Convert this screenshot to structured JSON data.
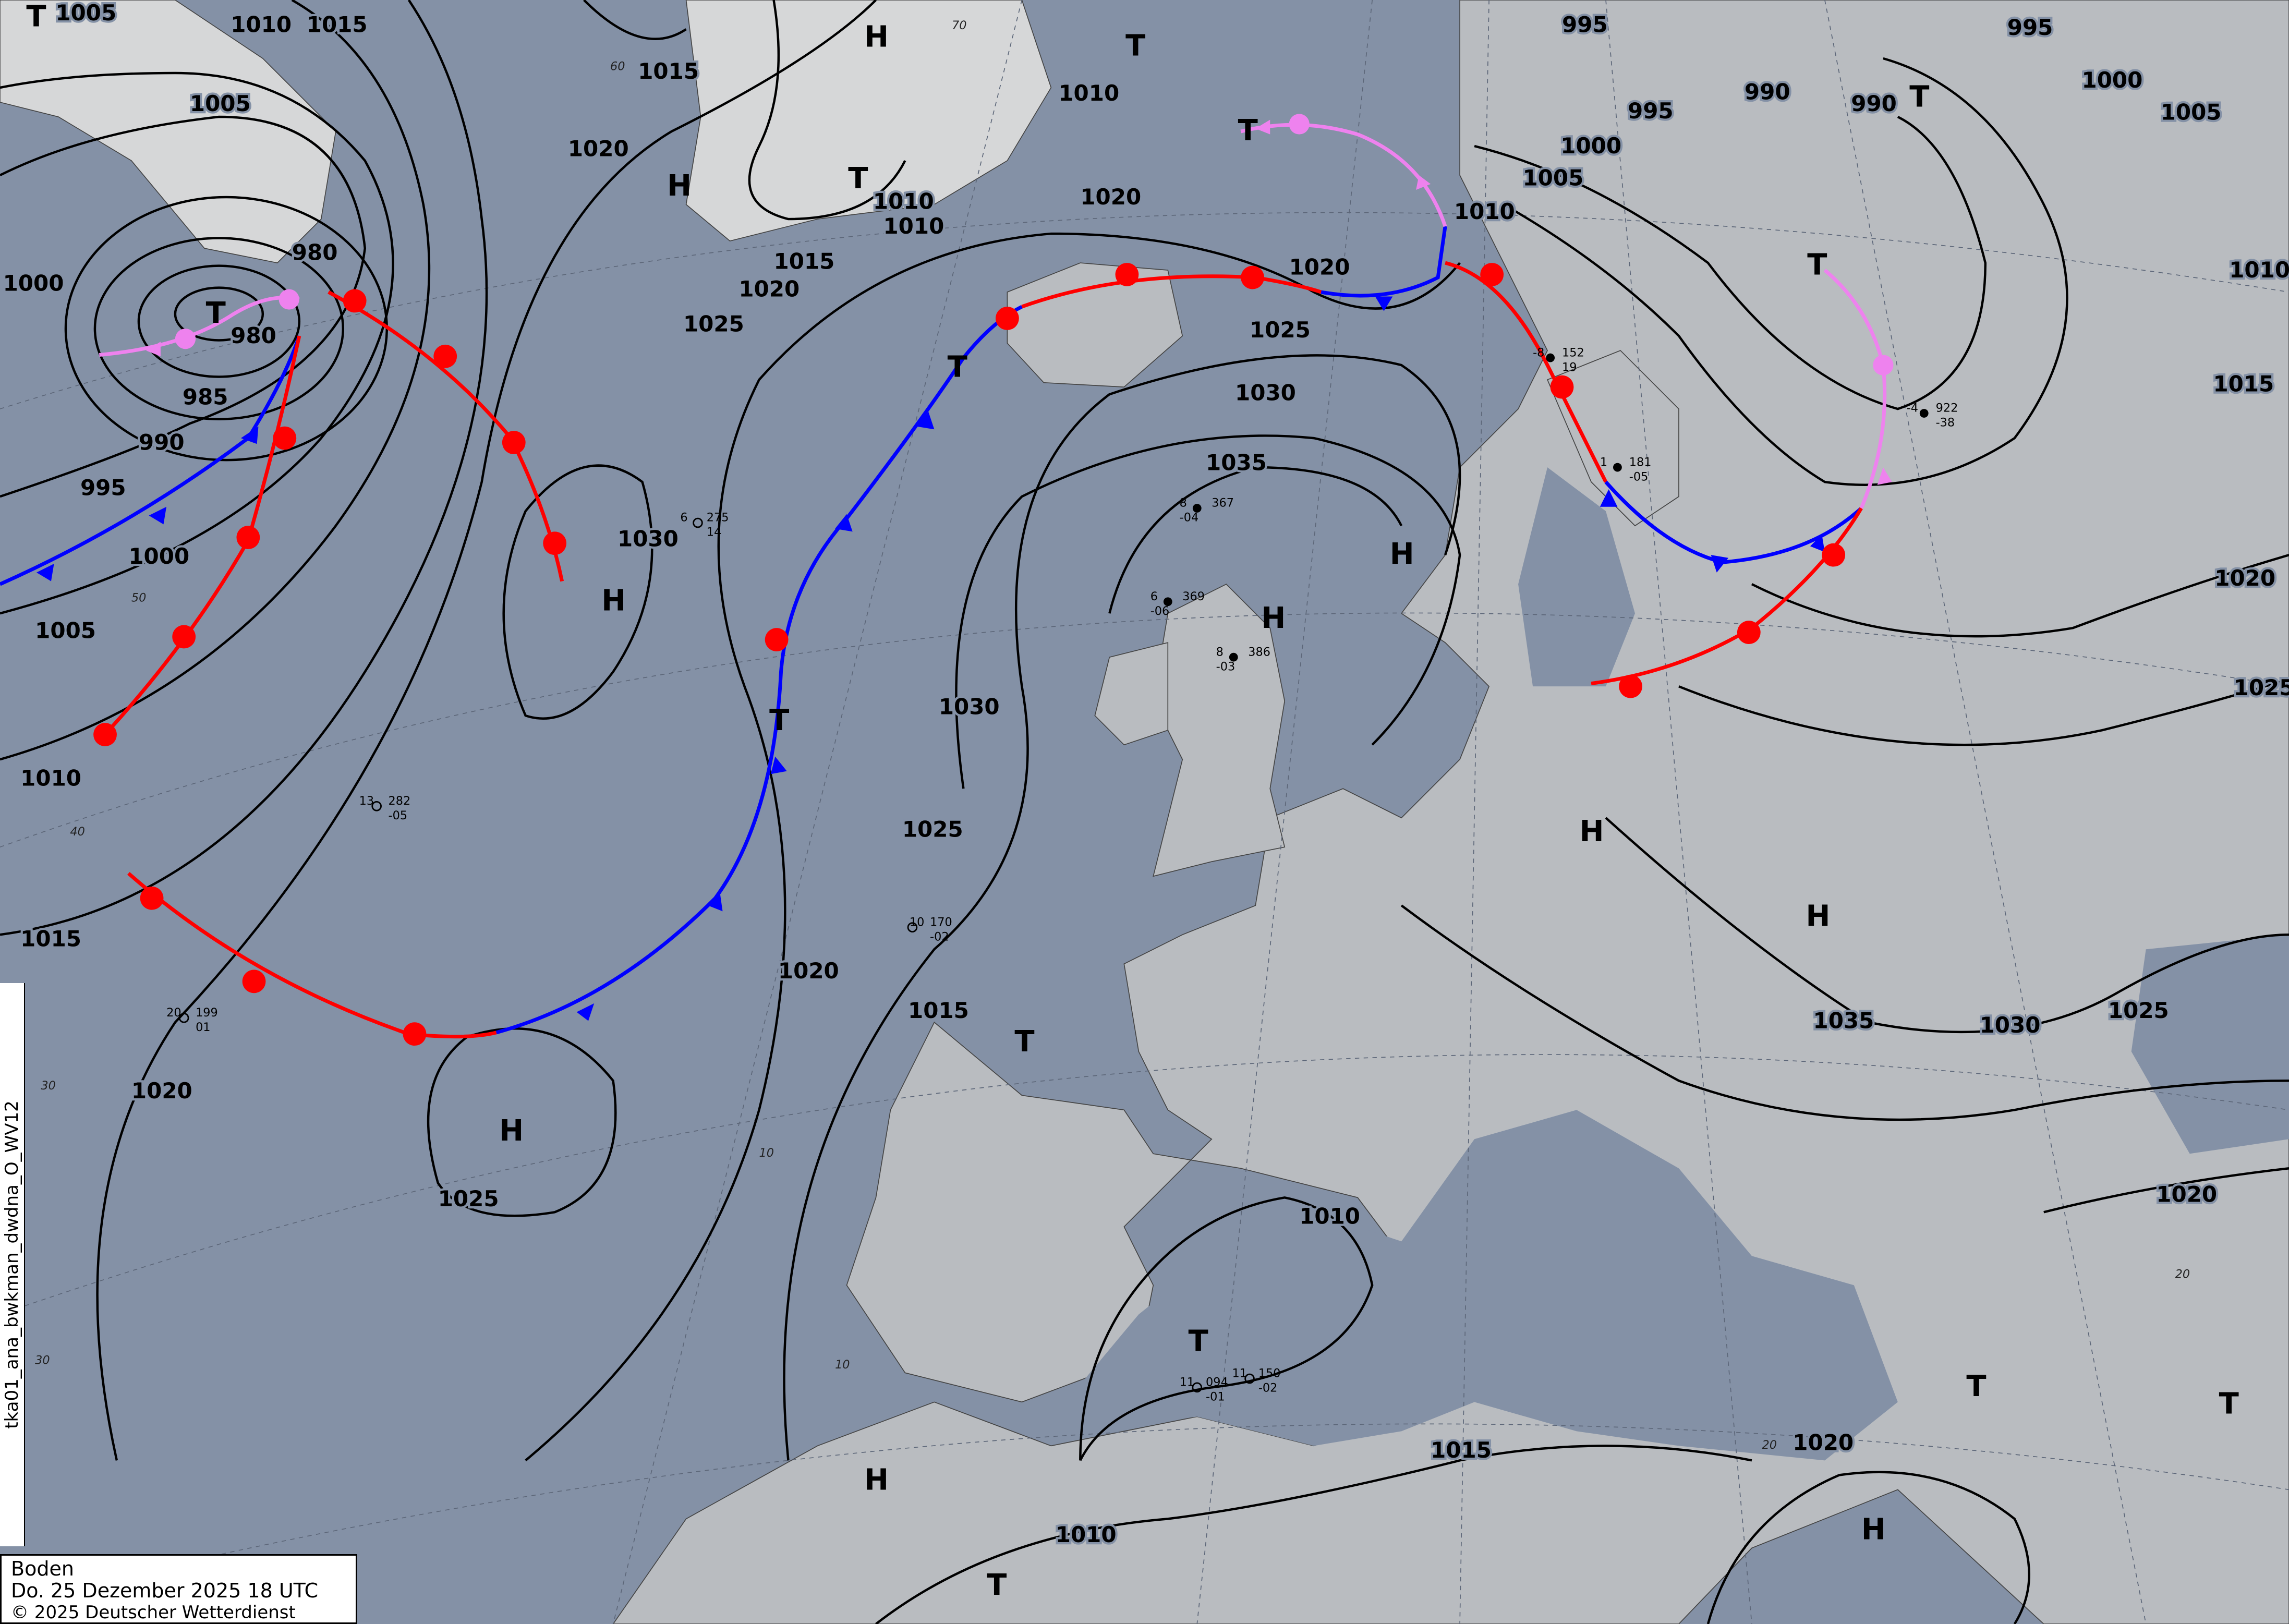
{
  "legend": {
    "level": "Boden",
    "datetime": "Do. 25 Dezember 2025 18 UTC",
    "copyright": "© 2025 Deutscher Wetterdienst"
  },
  "product_id": "tka01_ana_bwkman_dwdna_O_WV12",
  "colors": {
    "sea": "#8491a6",
    "land": "#c4c6c8",
    "cold_front": "#0000ff",
    "warm_front": "#ff0000",
    "occlusion": "#ee82ee",
    "isobar": "#000000"
  },
  "isobar_labels": [
    "1005",
    "1010",
    "1015",
    "1005",
    "1000",
    "980",
    "985",
    "990",
    "995",
    "1000",
    "1005",
    "1010",
    "1015",
    "1020",
    "1025",
    "1030",
    "1030",
    "1035",
    "1030",
    "1025",
    "1020",
    "1025",
    "1020",
    "1015",
    "1010",
    "1010",
    "1015",
    "1020",
    "1025",
    "1020",
    "1015",
    "1010",
    "1015",
    "1010",
    "1020",
    "1035",
    "1030",
    "1025",
    "1020",
    "1020",
    "1025",
    "1015",
    "1010",
    "1005",
    "1000",
    "995",
    "995",
    "995",
    "990",
    "990",
    "1000",
    "1005",
    "1010",
    "1020"
  ],
  "pressure_centers": [
    {
      "type": "T"
    },
    {
      "type": "T"
    },
    {
      "type": "H"
    },
    {
      "type": "H"
    },
    {
      "type": "T",
      "value": "1010"
    },
    {
      "type": "T",
      "value": "980"
    },
    {
      "type": "H"
    },
    {
      "type": "T"
    },
    {
      "type": "T"
    },
    {
      "type": "T"
    },
    {
      "type": "H"
    },
    {
      "type": "H"
    },
    {
      "type": "H"
    },
    {
      "type": "H"
    },
    {
      "type": "T"
    },
    {
      "type": "H"
    },
    {
      "type": "T"
    },
    {
      "type": "H"
    },
    {
      "type": "T"
    },
    {
      "type": "H"
    },
    {
      "type": "T"
    },
    {
      "type": "T"
    },
    {
      "type": "T"
    },
    {
      "type": "T"
    }
  ],
  "stations": [
    {
      "p": "367",
      "t": "8",
      "dp": "-04"
    },
    {
      "p": "369",
      "t": "6",
      "dp": "-06"
    },
    {
      "p": "386",
      "t": "8",
      "dp": "-03"
    },
    {
      "p": "275",
      "t": "6",
      "dp": "14"
    },
    {
      "p": "282",
      "t": "13",
      "dp": "-05"
    },
    {
      "p": "199",
      "t": "20",
      "dp": "01"
    },
    {
      "p": "170",
      "t": "10",
      "dp": "-02"
    },
    {
      "p": "094",
      "t": "11",
      "dp": "-01"
    },
    {
      "p": "150",
      "t": "11",
      "dp": "-02"
    },
    {
      "p": "152",
      "t": "-8",
      "dp": "19"
    },
    {
      "p": "181",
      "t": "1",
      "dp": "-05"
    },
    {
      "p": "922",
      "t": "-4",
      "dp": "-38"
    }
  ],
  "latitude_labels": [
    "70",
    "60",
    "50",
    "40",
    "30",
    "30",
    "20",
    "10",
    "10",
    "20"
  ]
}
